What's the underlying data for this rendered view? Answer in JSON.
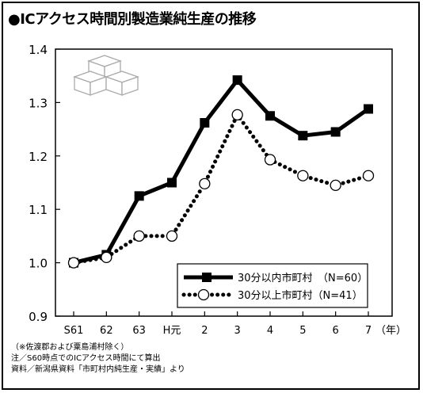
{
  "title": "●ICアクセス時間別製造業純生産の推移",
  "notes": [
    "（※佐渡郡および粟島浦村除く）",
    "注／S60時点でのICアクセス時間にて算出",
    "資料／新潟県資料「市町村内純生産・実績」より"
  ],
  "chart_data": {
    "type": "line",
    "title": "●ICアクセス時間別製造業純生産の推移",
    "categories": [
      "S61",
      "62",
      "63",
      "H元",
      "2",
      "3",
      "4",
      "5",
      "6",
      "7"
    ],
    "x_unit": "（年）",
    "ylim": [
      0.9,
      1.4
    ],
    "yticks": [
      "0.9",
      "1.0",
      "1.1",
      "1.2",
      "1.3",
      "1.4"
    ],
    "grid": false,
    "legend_position": "bottom-right",
    "series": [
      {
        "name": "30分以内市町村　（N=60）",
        "style": "solid-square",
        "values": [
          1.0,
          1.015,
          1.125,
          1.15,
          1.262,
          1.342,
          1.275,
          1.238,
          1.245,
          1.288
        ]
      },
      {
        "name": "30分以上市町村（N=41）",
        "style": "dotted-circle",
        "values": [
          1.0,
          1.01,
          1.05,
          1.05,
          1.148,
          1.277,
          1.193,
          1.163,
          1.145,
          1.163
        ]
      }
    ]
  }
}
